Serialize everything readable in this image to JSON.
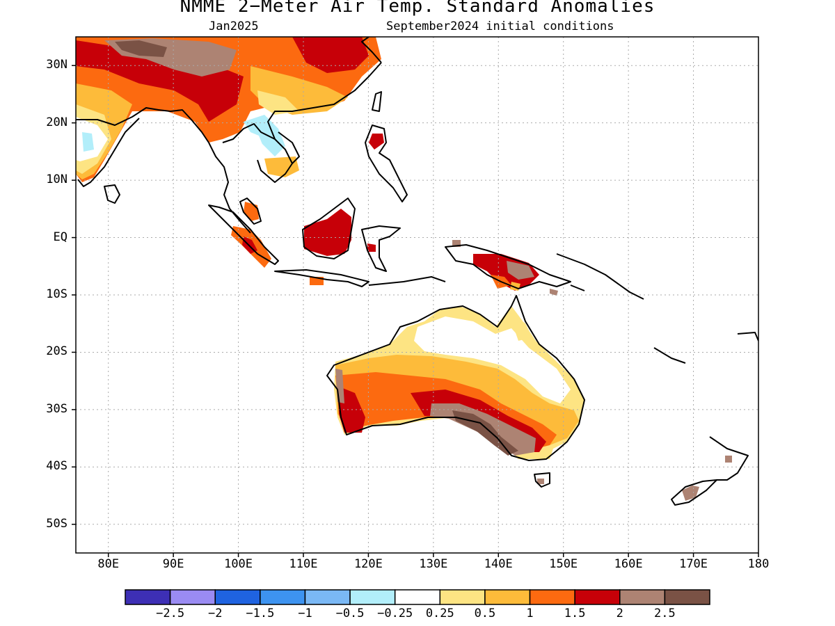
{
  "header": {
    "title": "NMME 2−Meter Air Temp. Standard Anomalies",
    "valid_month": "Jan2025",
    "initial_conditions": "September2024 initial conditions"
  },
  "axes": {
    "lat_labels": [
      "30N",
      "20N",
      "10N",
      "EQ",
      "10S",
      "20S",
      "30S",
      "40S",
      "50S"
    ],
    "lon_labels": [
      "80E",
      "90E",
      "100E",
      "110E",
      "120E",
      "130E",
      "140E",
      "150E",
      "160E",
      "170E",
      "180"
    ],
    "lon_range": [
      75,
      180
    ],
    "lat_range": [
      -55,
      35
    ],
    "grid": "dotted"
  },
  "colorbar": {
    "colors": [
      "#3d2fb5",
      "#9a8bf2",
      "#1f63e0",
      "#3d93f0",
      "#7ab8f5",
      "#b2eefa",
      "#ffffff",
      "#fde483",
      "#fdbb3a",
      "#fc6a10",
      "#c70008",
      "#ad8373",
      "#7a5245"
    ],
    "labels": [
      "−2.5",
      "−2",
      "−1.5",
      "−1",
      "−0.5",
      "−0.25",
      "0.25",
      "0.5",
      "1",
      "1.5",
      "2",
      "2.5"
    ]
  }
}
